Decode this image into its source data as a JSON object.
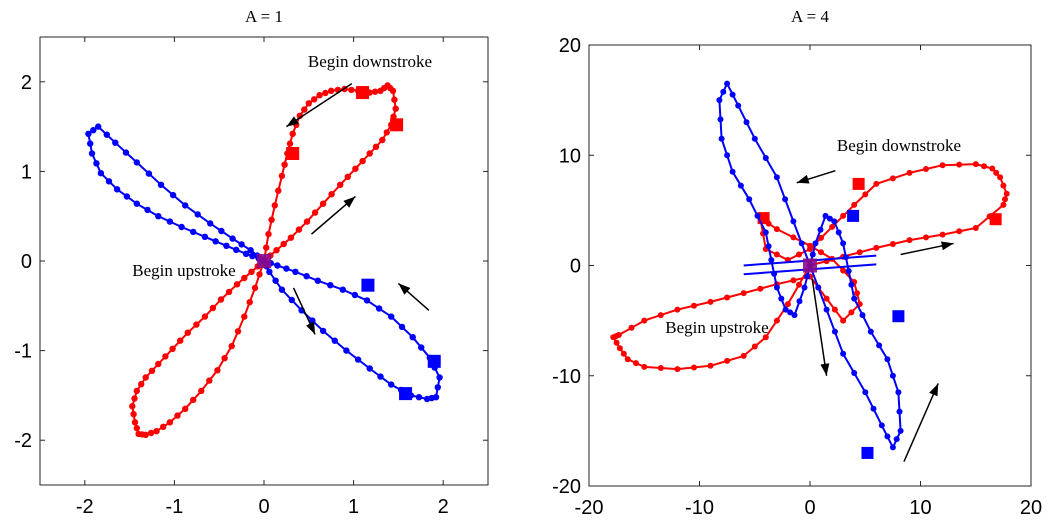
{
  "chart_data": [
    {
      "type": "line",
      "title": "A = 1",
      "xlabel": "",
      "ylabel": "",
      "xlim": [
        -2.5,
        2.5
      ],
      "ylim": [
        -2.5,
        2.5
      ],
      "xticks": [
        -2,
        -1,
        0,
        1,
        2
      ],
      "yticks": [
        -2,
        -1,
        0,
        1,
        2
      ],
      "xtick_labels": [
        "-2",
        "-1",
        "0",
        "1",
        "2"
      ],
      "ytick_labels": [
        "-2",
        "-1",
        "0",
        "1",
        "2"
      ],
      "grid": false,
      "series": [
        {
          "color": "#ff0000",
          "marker": "dot",
          "x": [
            0,
            0.05,
            0.12,
            0.2,
            0.26,
            0.32,
            0.4,
            0.5,
            0.62,
            0.75,
            0.9,
            1.05,
            1.18,
            1.3,
            1.38,
            1.44,
            1.47,
            1.42,
            1.32,
            1.18,
            1.02,
            0.85,
            0.66,
            0.48,
            0.3,
            0.14,
            0,
            -0.1,
            -0.22,
            -0.36,
            -0.52,
            -0.7,
            -0.88,
            -1.05,
            -1.2,
            -1.32,
            -1.4,
            -1.44,
            -1.47,
            -1.42,
            -1.32,
            -1.18,
            -1.02,
            -0.85,
            -0.66,
            -0.48,
            -0.3,
            -0.14,
            0
          ],
          "y": [
            0,
            0.3,
            0.62,
            0.95,
            1.2,
            1.42,
            1.62,
            1.76,
            1.85,
            1.9,
            1.92,
            1.9,
            1.88,
            1.9,
            1.96,
            1.9,
            1.7,
            1.52,
            1.35,
            1.2,
            1.03,
            0.85,
            0.64,
            0.44,
            0.26,
            0.12,
            0,
            -0.3,
            -0.62,
            -0.95,
            -1.22,
            -1.45,
            -1.65,
            -1.8,
            -1.9,
            -1.94,
            -1.93,
            -1.8,
            -1.62,
            -1.45,
            -1.3,
            -1.15,
            -0.98,
            -0.8,
            -0.62,
            -0.43,
            -0.26,
            -0.12,
            0
          ],
          "squares": [
            [
              0.32,
              1.2
            ],
            [
              1.1,
              1.88
            ],
            [
              1.48,
              1.52
            ]
          ]
        },
        {
          "color": "#0000ff",
          "marker": "dot",
          "x": [
            0,
            -0.15,
            -0.35,
            -0.6,
            -0.88,
            -1.15,
            -1.42,
            -1.66,
            -1.85,
            -1.96,
            -1.92,
            -1.82,
            -1.64,
            -1.42,
            -1.18,
            -0.92,
            -0.66,
            -0.42,
            -0.2,
            -0.06,
            0,
            0.15,
            0.35,
            0.6,
            0.88,
            1.15,
            1.42,
            1.66,
            1.85,
            1.96,
            1.92,
            1.82,
            1.64,
            1.42,
            1.18,
            0.92,
            0.66,
            0.42,
            0.2,
            0.06,
            0
          ],
          "y": [
            0,
            0.12,
            0.25,
            0.42,
            0.62,
            0.85,
            1.1,
            1.32,
            1.5,
            1.42,
            1.2,
            0.98,
            0.8,
            0.64,
            0.5,
            0.38,
            0.27,
            0.17,
            0.08,
            0.03,
            0,
            -0.05,
            -0.12,
            -0.22,
            -0.32,
            -0.44,
            -0.62,
            -0.85,
            -1.08,
            -1.3,
            -1.52,
            -1.54,
            -1.5,
            -1.38,
            -1.2,
            -1.0,
            -0.78,
            -0.55,
            -0.32,
            -0.12,
            0
          ],
          "squares": [
            [
              1.16,
              -0.27
            ],
            [
              1.9,
              -1.12
            ],
            [
              1.58,
              -1.48
            ]
          ]
        }
      ],
      "center_marker": [
        0,
        0
      ],
      "annotations": [
        {
          "text": "Begin downstroke",
          "at": [
            1.2,
            2.25
          ]
        },
        {
          "text": "Begin upstroke",
          "at": [
            -0.8,
            -0.13
          ]
        }
      ],
      "arrows": [
        {
          "from": [
            0.98,
            1.98
          ],
          "to": [
            0.25,
            1.5
          ]
        },
        {
          "from": [
            0.53,
            0.3
          ],
          "to": [
            1.02,
            0.72
          ]
        },
        {
          "from": [
            0.33,
            -0.3
          ],
          "to": [
            0.57,
            -0.82
          ]
        },
        {
          "from": [
            1.84,
            -0.55
          ],
          "to": [
            1.5,
            -0.25
          ]
        }
      ]
    },
    {
      "type": "line",
      "title": "A = 4",
      "xlabel": "",
      "ylabel": "",
      "xlim": [
        -20,
        20
      ],
      "ylim": [
        -20,
        20
      ],
      "xticks": [
        -20,
        -10,
        0,
        10,
        20
      ],
      "yticks": [
        -20,
        -10,
        0,
        10,
        20
      ],
      "xtick_labels": [
        "-20",
        "-10",
        "0",
        "10",
        "20"
      ],
      "ytick_labels": [
        "-20",
        "-10",
        "0",
        "10",
        "20"
      ],
      "grid": false,
      "series": [
        {
          "color": "#ff0000",
          "marker": "dot",
          "x": [
            0,
            3,
            6,
            9,
            12,
            15,
            17.5,
            17.8,
            17.2,
            16.5,
            15,
            12,
            9,
            6,
            4,
            2,
            0,
            -2,
            -4,
            -4.5,
            -3,
            0,
            2,
            4,
            4.5,
            3,
            1.5,
            0,
            -3,
            -6,
            -9,
            -12,
            -15,
            -17.3,
            -17.8,
            -17.2,
            -16.5,
            -15,
            -12,
            -9,
            -6,
            -4,
            -2,
            0
          ],
          "y": [
            0,
            0.8,
            1.6,
            2.3,
            2.8,
            3.4,
            5.5,
            6.5,
            8,
            8.8,
            9.2,
            9.1,
            8.4,
            7.4,
            5.5,
            3.5,
            1.5,
            0.5,
            1.5,
            4.3,
            3.3,
            1.8,
            0.6,
            -1.5,
            -3.5,
            -5,
            -3,
            -1,
            -1.7,
            -2.5,
            -3.3,
            -4,
            -5,
            -6.3,
            -6.5,
            -7.5,
            -8.5,
            -9.2,
            -9.4,
            -9.1,
            -8.2,
            -6.5,
            -3.5,
            0
          ],
          "squares": [
            [
              -4.2,
              4.3
            ],
            [
              4.4,
              7.4
            ],
            [
              16.8,
              4.2
            ]
          ]
        },
        {
          "color": "#0000ff",
          "marker": "dot",
          "x": [
            0,
            -1.5,
            -3,
            -5,
            -6.5,
            -7.5,
            -8.2,
            -8,
            -7,
            -5.5,
            -4,
            -3.5,
            -3,
            -2.2,
            -1.4,
            -0.5,
            0,
            1.5,
            3,
            5,
            6.5,
            7.5,
            8.2,
            8,
            7,
            5.5,
            4,
            3.5,
            3,
            2.2,
            1.4,
            0.5,
            0
          ],
          "y": [
            0,
            4,
            8,
            11.5,
            14.5,
            16.5,
            15,
            11.5,
            8.5,
            6,
            3,
            0.5,
            -2,
            -4,
            -4.5,
            -2,
            0,
            -4,
            -8,
            -11.5,
            -14.5,
            -16.5,
            -15,
            -11.5,
            -8.5,
            -6,
            -3,
            -0.5,
            2,
            4,
            4.5,
            2,
            0
          ],
          "squares": [
            [
              3.9,
              4.5
            ],
            [
              5.2,
              -17
            ],
            [
              8,
              -4.6
            ]
          ]
        },
        {
          "color": "#0000ff",
          "marker": "none",
          "x": [
            -6,
            6
          ],
          "y": [
            0,
            0.9
          ]
        },
        {
          "color": "#0000ff",
          "marker": "none",
          "x": [
            -6,
            6
          ],
          "y": [
            -0.8,
            0.1
          ]
        }
      ],
      "center_marker": [
        0,
        0
      ],
      "annotations": [
        {
          "text": "Begin downstroke",
          "at": [
            10,
            10.8
          ]
        },
        {
          "text": "Begin upstroke",
          "at": [
            -12.5,
            -5.7
          ]
        }
      ],
      "arrows": [
        {
          "from": [
            2.3,
            8.6
          ],
          "to": [
            -1.2,
            7.5
          ]
        },
        {
          "from": [
            8.2,
            1
          ],
          "to": [
            13,
            2
          ]
        },
        {
          "from": [
            0.2,
            -1.2
          ],
          "to": [
            1.5,
            -10
          ]
        },
        {
          "from": [
            8.5,
            -17.8
          ],
          "to": [
            11.6,
            -10.7
          ]
        }
      ]
    }
  ]
}
